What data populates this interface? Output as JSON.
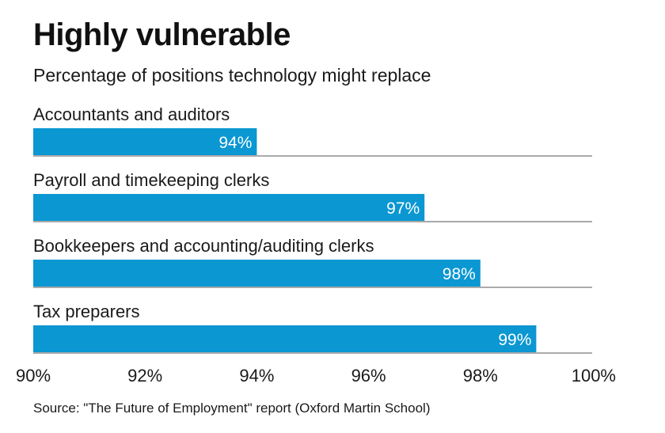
{
  "title": "Highly vulnerable",
  "subtitle": "Percentage of positions technology might replace",
  "source": "Source: \"The Future of Employment\" report (Oxford Martin School)",
  "colors": {
    "bar": "#0a97d2",
    "bar_label": "#ffffff",
    "rule": "#555555",
    "text": "#1a1a1a"
  },
  "chart_data": {
    "type": "bar",
    "orientation": "horizontal",
    "categories": [
      "Accountants and auditors",
      "Payroll and timekeeping clerks",
      "Bookkeepers and accounting/auditing clerks",
      "Tax preparers"
    ],
    "values": [
      94,
      97,
      98,
      99
    ],
    "value_labels": [
      "94%",
      "97%",
      "98%",
      "99%"
    ],
    "xlim": [
      90,
      100
    ],
    "xticks": [
      90,
      92,
      94,
      96,
      98,
      100
    ],
    "xtick_labels": [
      "90%",
      "92%",
      "94%",
      "96%",
      "98%",
      "100%"
    ],
    "grid": false
  }
}
